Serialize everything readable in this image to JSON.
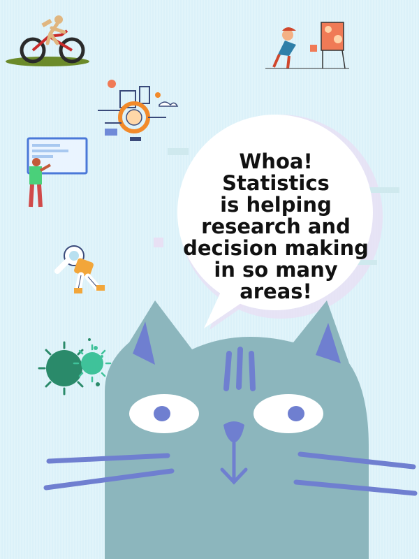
{
  "speech_bubble": {
    "lines": [
      "Whoa! Statistics",
      "is helping",
      "research and",
      "decision making",
      "in so many",
      "areas!"
    ]
  },
  "colors": {
    "background": "#dbf1f9",
    "cat_face": "#8cb6bd",
    "cat_features": "#6f7fd0",
    "bubble": "#ffffff",
    "virus_dark": "#2a8a6a",
    "virus_light": "#3fc29a"
  },
  "illustrations": [
    "cyclist-icon",
    "painter-icon",
    "machine-icon",
    "presenter-icon",
    "astronaut-icon",
    "virus-icon",
    "cat-icon"
  ]
}
